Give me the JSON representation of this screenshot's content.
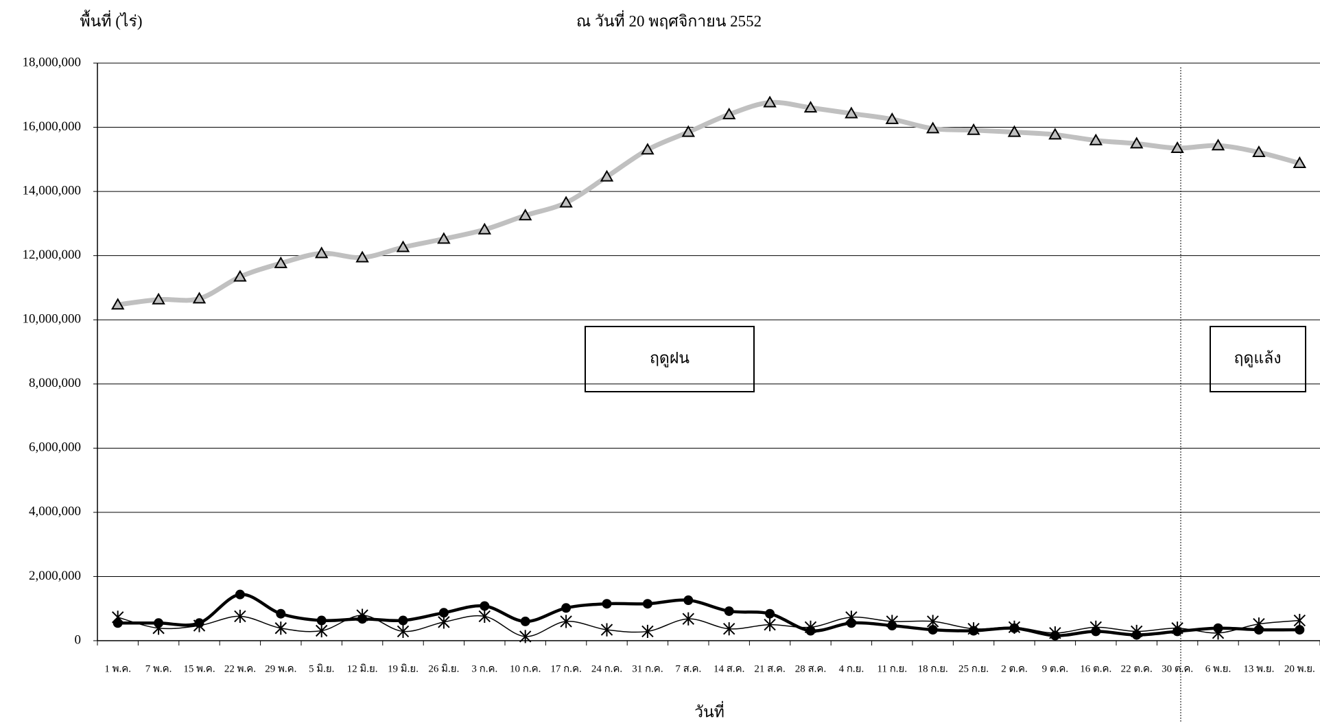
{
  "chart_data": {
    "type": "line",
    "title": "ณ วันที่  20 พฤศจิกายน  2552",
    "y_label": "พื้นที่ (ไร่)",
    "x_label": "วันที่",
    "annotations": [
      "ฤดูฝน",
      "ฤดูแล้ง"
    ],
    "categories": [
      "1 พ.ค.",
      "7 พ.ค.",
      "15 พ.ค.",
      "22 พ.ค.",
      "29 พ.ค.",
      "5 มิ.ย.",
      "12 มิ.ย.",
      "19 มิ.ย.",
      "26 มิ.ย.",
      "3 ก.ค.",
      "10 ก.ค.",
      "17 ก.ค.",
      "24 ก.ค.",
      "31 ก.ค.",
      "7 ส.ค.",
      "14 ส.ค.",
      "21 ส.ค.",
      "28 ส.ค.",
      "4 ก.ย.",
      "11 ก.ย.",
      "18 ก.ย.",
      "25 ก.ย.",
      "2 ต.ค.",
      "9 ต.ค.",
      "16 ต.ค.",
      "22 ต.ค.",
      "30 ต.ค.",
      "6 พ.ย.",
      "13 พ.ย.",
      "20 พ.ย."
    ],
    "series": [
      {
        "color": "#c0c0c0",
        "marker": "triangle",
        "values": [
          10470000,
          10630000,
          10660000,
          11340000,
          11760000,
          12070000,
          11940000,
          12260000,
          12520000,
          12810000,
          13250000,
          13650000,
          14460000,
          15300000,
          15850000,
          16400000,
          16770000,
          16610000,
          16430000,
          16250000,
          15960000,
          15910000,
          15850000,
          15770000,
          15590000,
          15490000,
          15350000,
          15430000,
          15220000,
          14880000
        ]
      },
      {
        "color": "#000000",
        "marker": "circle",
        "values": [
          550000,
          550000,
          550000,
          1440000,
          840000,
          630000,
          680000,
          630000,
          870000,
          1080000,
          600000,
          1020000,
          1150000,
          1150000,
          1260000,
          920000,
          840000,
          310000,
          550000,
          470000,
          340000,
          310000,
          390000,
          160000,
          290000,
          180000,
          290000,
          390000,
          340000,
          340000
        ]
      },
      {
        "color": "#000000",
        "marker": "asterisk",
        "values": [
          730000,
          390000,
          470000,
          760000,
          390000,
          310000,
          790000,
          290000,
          580000,
          760000,
          130000,
          600000,
          340000,
          290000,
          680000,
          370000,
          500000,
          420000,
          730000,
          600000,
          600000,
          370000,
          420000,
          240000,
          420000,
          290000,
          390000,
          240000,
          520000,
          630000
        ]
      }
    ],
    "ylim": [
      0,
      18000000
    ],
    "yticks": [
      0,
      {
        "value": 2000000,
        "label": "2,000,000"
      },
      {
        "value": 4000000,
        "label": "4,000,000"
      },
      {
        "value": 6000000,
        "label": "6,000,000"
      },
      {
        "value": 8000000,
        "label": "8,000,000"
      },
      {
        "value": 10000000,
        "label": "10,000,000"
      },
      {
        "value": 12000000,
        "label": "12,000,000"
      },
      {
        "value": 14000000,
        "label": "14,000,000"
      },
      {
        "value": 16000000,
        "label": "16,000,000"
      },
      {
        "value": 18000000,
        "label": "18,000,000"
      }
    ],
    "grid": true
  }
}
